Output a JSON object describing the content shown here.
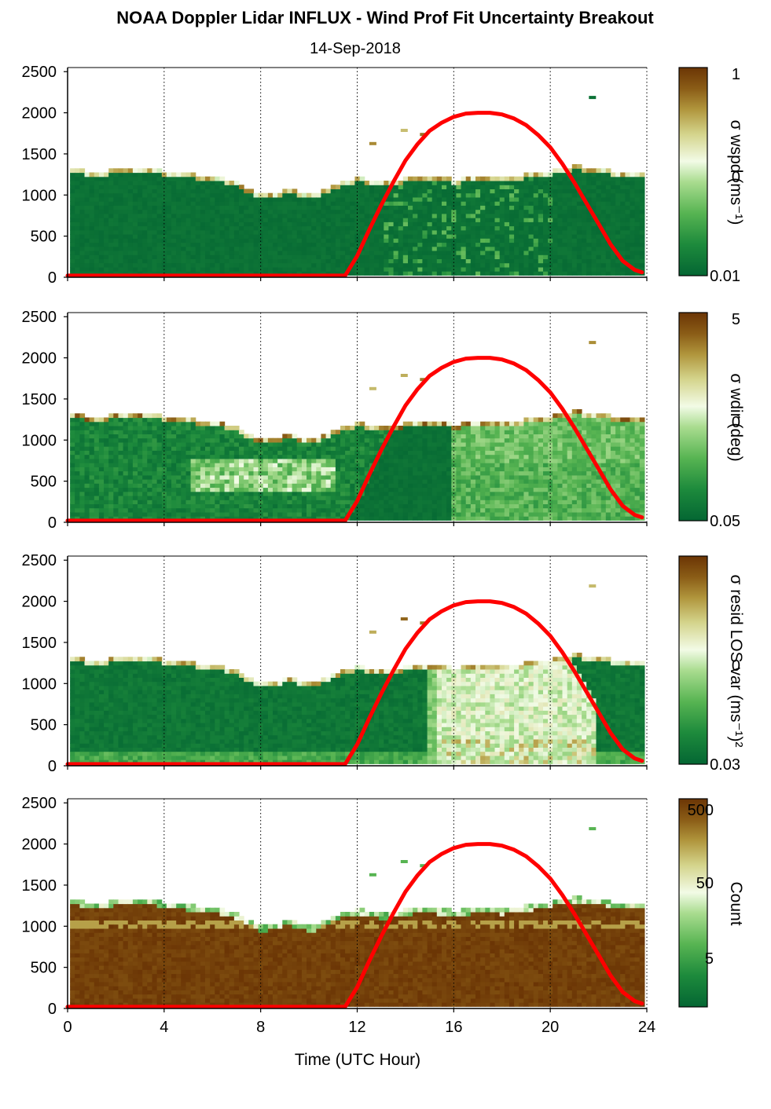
{
  "title": "NOAA Doppler Lidar INFLUX - Wind Prof Fit Uncertainty Breakout",
  "date": "14-Sep-2018",
  "colors": {
    "sun_curve": "#ff0000",
    "cmap_low": "#046633",
    "cmap_mid": "#f2fbe6",
    "cmap_high": "#6b3505"
  },
  "chart_data": [
    {
      "type": "heatmap",
      "panel": 1,
      "quantity": "wspd uncertainty",
      "colorbar_label": "σ wspd (ms⁻¹)",
      "colorbar_ticks": [
        "1",
        "0",
        "0.01"
      ],
      "x_ticks": [
        "0",
        "4",
        "8",
        "12",
        "16",
        "20",
        "24"
      ],
      "y_ticks": [
        "0",
        "500",
        "1000",
        "1500",
        "2000",
        "2500"
      ],
      "xlim": [
        0,
        24
      ],
      "ylim": [
        0,
        2550
      ],
      "grid": "vertical dotted at 4,8,12,16,20,24"
    },
    {
      "type": "heatmap",
      "panel": 2,
      "quantity": "wdir uncertainty",
      "colorbar_label": "σ wdir (deg)",
      "colorbar_ticks": [
        "5",
        "0",
        "0.05"
      ],
      "x_ticks": [
        "0",
        "4",
        "8",
        "12",
        "16",
        "20",
        "24"
      ],
      "y_ticks": [
        "0",
        "500",
        "1000",
        "1500",
        "2000",
        "2500"
      ],
      "xlim": [
        0,
        24
      ],
      "ylim": [
        0,
        2550
      ],
      "grid": "vertical dotted at 4,8,12,16,20,24"
    },
    {
      "type": "heatmap",
      "panel": 3,
      "quantity": "residual LOS variance",
      "colorbar_label": "σ resid LOS var (ms⁻¹)²",
      "colorbar_ticks": [
        "0",
        "0.03"
      ],
      "x_ticks": [
        "0",
        "4",
        "8",
        "12",
        "16",
        "20",
        "24"
      ],
      "y_ticks": [
        "0",
        "500",
        "1000",
        "1500",
        "2000",
        "2500"
      ],
      "xlim": [
        0,
        24
      ],
      "ylim": [
        0,
        2550
      ],
      "grid": "vertical dotted at 4,8,12,16,20,24"
    },
    {
      "type": "heatmap",
      "panel": 4,
      "quantity": "count",
      "colorbar_label": "Count",
      "colorbar_ticks": [
        "500",
        "50",
        "5"
      ],
      "x_ticks": [
        "0",
        "4",
        "8",
        "12",
        "16",
        "20",
        "24"
      ],
      "y_ticks": [
        "0",
        "500",
        "1000",
        "1500",
        "2000",
        "2500"
      ],
      "xlim": [
        0,
        24
      ],
      "ylim": [
        0,
        2550
      ],
      "xlabel": "Time (UTC Hour)",
      "grid": "vertical dotted at 4,8,12,16,20,24"
    }
  ],
  "data_top_height": {
    "x": [
      0.1,
      0.5,
      1.0,
      1.5,
      2.0,
      2.5,
      3.0,
      3.5,
      4.0,
      4.5,
      5.0,
      5.5,
      6.0,
      6.5,
      7.0,
      7.5,
      8.0,
      8.5,
      9.0,
      9.5,
      10.0,
      10.5,
      11.0,
      11.5,
      12.0,
      12.5,
      13.0,
      13.5,
      14.0,
      14.5,
      15.0,
      15.5,
      16.0,
      16.5,
      17.0,
      17.5,
      18.0,
      18.5,
      19.0,
      19.5,
      20.0,
      20.5,
      21.0,
      21.5,
      22.0,
      22.5,
      23.0,
      23.5,
      23.8
    ],
    "y": [
      1290,
      1280,
      1260,
      1270,
      1290,
      1300,
      1320,
      1290,
      1260,
      1240,
      1230,
      1210,
      1190,
      1170,
      1120,
      1040,
      970,
      1000,
      1050,
      1010,
      970,
      1040,
      1110,
      1160,
      1190,
      1160,
      1120,
      1170,
      1180,
      1200,
      1190,
      1180,
      1170,
      1180,
      1200,
      1190,
      1180,
      1210,
      1230,
      1250,
      1280,
      1310,
      1330,
      1320,
      1290,
      1270,
      1260,
      1260,
      1270
    ]
  },
  "sun_elevation_curve": {
    "x": [
      0,
      11.5,
      12.0,
      12.5,
      13.0,
      13.5,
      14.0,
      14.5,
      15.0,
      15.5,
      16.0,
      16.5,
      17.0,
      17.5,
      18.0,
      18.5,
      19.0,
      19.5,
      20.0,
      20.5,
      21.0,
      21.5,
      22.0,
      22.5,
      23.0,
      23.5,
      23.8
    ],
    "y": [
      20,
      20,
      260,
      580,
      880,
      1160,
      1420,
      1620,
      1780,
      1880,
      1950,
      1990,
      2000,
      2000,
      1980,
      1930,
      1850,
      1730,
      1580,
      1380,
      1150,
      900,
      650,
      400,
      200,
      90,
      60
    ]
  },
  "isolated_points": [
    {
      "x": 12.5,
      "y": 1620
    },
    {
      "x": 13.8,
      "y": 1780
    },
    {
      "x": 14.6,
      "y": 1730
    },
    {
      "x": 21.6,
      "y": 2180
    }
  ]
}
